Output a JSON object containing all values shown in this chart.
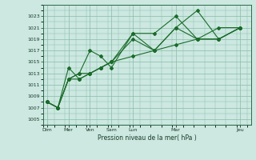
{
  "background_color": "#cce8e0",
  "grid_color": "#88bbaa",
  "line_color": "#1a6b2a",
  "xlabel": "Pression niveau de la mer( hPa )",
  "ylim": [
    1004,
    1025
  ],
  "yticks": [
    1005,
    1007,
    1009,
    1011,
    1013,
    1015,
    1017,
    1019,
    1021,
    1023
  ],
  "x_major_pos": [
    0,
    6,
    12,
    18,
    24,
    36,
    54
  ],
  "x_major_labels": [
    "Dim",
    "Mer",
    "Ven",
    "Sam",
    "Lun",
    "Mar",
    "Jeu"
  ],
  "x_minor_step": 3,
  "xlim": [
    -1,
    57
  ],
  "series": [
    {
      "x": [
        0,
        3,
        6,
        9,
        12,
        15,
        18,
        24,
        30,
        36,
        42,
        48,
        54
      ],
      "y": [
        1008,
        1007,
        1014,
        1012,
        1013,
        1014,
        1015,
        1020,
        1020,
        1023,
        1019,
        1021,
        1021
      ]
    },
    {
      "x": [
        0,
        3,
        6,
        9,
        12,
        15,
        18,
        24,
        30,
        36,
        42,
        48,
        54
      ],
      "y": [
        1008,
        1007,
        1012,
        1013,
        1017,
        1016,
        1014,
        1020,
        1017,
        1021,
        1019,
        1019,
        1021
      ]
    },
    {
      "x": [
        0,
        3,
        6,
        9,
        12,
        15,
        18,
        24,
        30,
        36,
        42,
        48,
        54
      ],
      "y": [
        1008,
        1007,
        1012,
        1013,
        1013,
        1014,
        1015,
        1019,
        1017,
        1021,
        1024,
        1019,
        1021
      ]
    },
    {
      "x": [
        0,
        3,
        6,
        9,
        12,
        15,
        18,
        24,
        30,
        36,
        42,
        48,
        54
      ],
      "y": [
        1008,
        1007,
        1012,
        1012,
        1013,
        1014,
        1015,
        1016,
        1017,
        1018,
        1019,
        1019,
        1021
      ]
    }
  ]
}
